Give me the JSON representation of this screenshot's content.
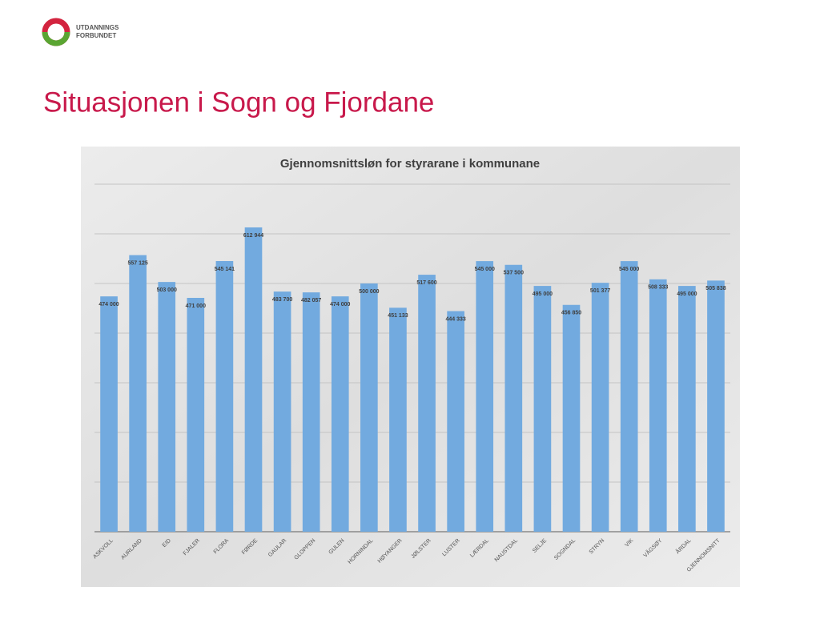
{
  "slide": {
    "title": "Situasjonen i Sogn og Fjordane",
    "logo": [
      "UTDANNINGS",
      "FORBUNDET"
    ]
  },
  "chart_data": {
    "type": "bar",
    "title": "Gjennomsnittsløn for styrarane i kommunane",
    "categories": [
      "ASKVOLL",
      "AURLAND",
      "EID",
      "FJALER",
      "FLORA",
      "FØRDE",
      "GAULAR",
      "GLOPPEN",
      "GULEN",
      "HORNINDAL",
      "HØYANGER",
      "JØLSTER",
      "LUSTER",
      "LÆRDAL",
      "NAUSTDAL",
      "SELJE",
      "SOGNDAL",
      "STRYN",
      "VIK",
      "VÅGSØY",
      "ÅRDAL",
      "GJENNOMSNITT"
    ],
    "values": [
      474000,
      557125,
      503000,
      471000,
      545141,
      612944,
      483700,
      482057,
      474000,
      500000,
      451133,
      517600,
      444333,
      545000,
      537500,
      495000,
      456850,
      501377,
      545000,
      508333,
      495000,
      505838
    ],
    "value_labels": [
      "474 000",
      "557 125",
      "503 000",
      "471 000",
      "545 141",
      "612 944",
      "483 700",
      "482 057",
      "474 000",
      "500 000",
      "451 133",
      "517 600",
      "444 333",
      "545 000",
      "537 500",
      "495 000",
      "456 850",
      "501 377",
      "545 000",
      "508 333",
      "495 000",
      "505 838"
    ],
    "color": "#72aadf",
    "ylim": [
      0,
      700000
    ],
    "yticks": [
      0,
      100000,
      200000,
      300000,
      400000,
      500000,
      600000,
      700000
    ],
    "grid": true
  }
}
